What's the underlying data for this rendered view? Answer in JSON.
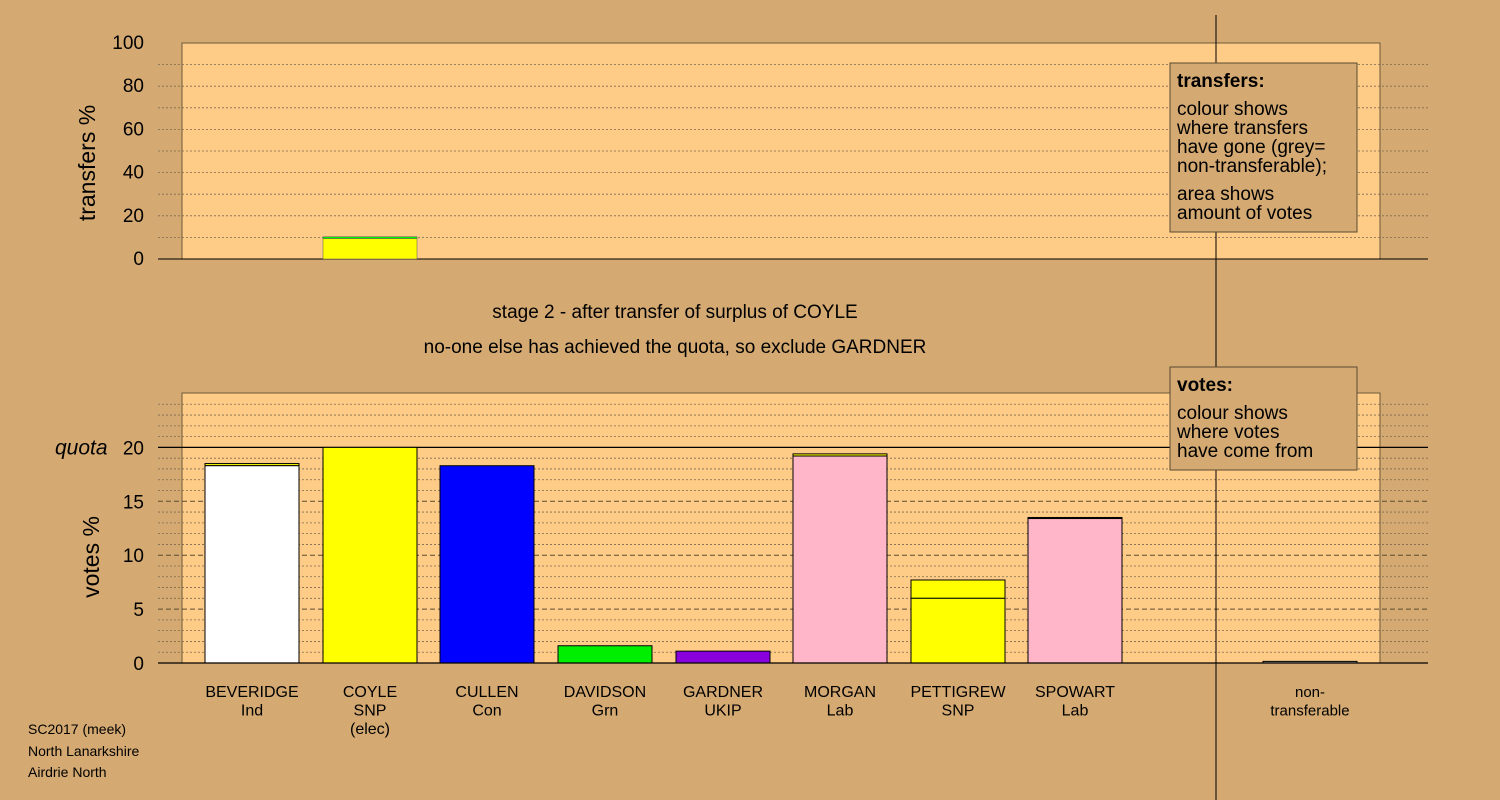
{
  "chart_data": [
    {
      "type": "bar",
      "ylabel": "transfers %",
      "ylim": [
        0,
        100
      ],
      "yticks": [
        0,
        20,
        40,
        60,
        80,
        100
      ],
      "categories": [
        "BEVERIDGE",
        "COYLE",
        "CULLEN",
        "DAVIDSON",
        "GARDNER",
        "MORGAN",
        "PETTIGREW",
        "SPOWART",
        "non-transferable"
      ],
      "series": [
        {
          "color": "#ffff00",
          "values": [
            0,
            9.5,
            0,
            0,
            0,
            0,
            0,
            0,
            0
          ]
        },
        {
          "color": "#00ee00",
          "values": [
            0,
            0.8,
            0,
            0,
            0,
            0,
            0,
            0,
            0
          ]
        }
      ],
      "legend": {
        "title": "transfers:",
        "lines1": [
          "colour shows",
          "where transfers",
          "have gone (grey=",
          "non-transferable);"
        ],
        "lines2": [
          "area shows",
          "amount of votes"
        ]
      }
    },
    {
      "type": "bar",
      "ylabel": "votes %",
      "ylim": [
        0,
        24
      ],
      "yticks": [
        0,
        5,
        10,
        15,
        20
      ],
      "quota": {
        "label": "quota",
        "value": 20
      },
      "categories": [
        "BEVERIDGE",
        "COYLE",
        "CULLEN",
        "DAVIDSON",
        "GARDNER",
        "MORGAN",
        "PETTIGREW",
        "SPOWART",
        "non-transferable"
      ],
      "category_labels": [
        [
          "BEVERIDGE",
          "Ind"
        ],
        [
          "COYLE",
          "SNP",
          "(elec)"
        ],
        [
          "CULLEN",
          "Con"
        ],
        [
          "DAVIDSON",
          "Grn"
        ],
        [
          "GARDNER",
          "UKIP"
        ],
        [
          "MORGAN",
          "Lab"
        ],
        [
          "PETTIGREW",
          "SNP"
        ],
        [
          "SPOWART",
          "Lab"
        ],
        [
          "non-",
          "transferable"
        ]
      ],
      "bars": [
        {
          "color": "#ffffff",
          "first": 18.3,
          "total": 18.5
        },
        {
          "color": "#ffff00",
          "first": 20.0,
          "total": 20.0
        },
        {
          "color": "#0000ff",
          "first": 18.3,
          "total": 18.3
        },
        {
          "color": "#00ee00",
          "first": 1.6,
          "total": 1.6
        },
        {
          "color": "#8800dd",
          "first": 1.1,
          "total": 1.1
        },
        {
          "color": "#ffb6c8",
          "first": 19.2,
          "total": 19.4
        },
        {
          "color": "#ffff00",
          "first": 6.0,
          "total": 7.7,
          "base_color": "#ffff00"
        },
        {
          "color": "#ffb6c8",
          "first": 13.4,
          "total": 13.5
        },
        {
          "color": "#b0b0b0",
          "first": 0.15,
          "total": 0.15
        }
      ],
      "legend": {
        "title": "votes:",
        "lines1": [
          "colour shows",
          "where votes",
          "have come from"
        ]
      }
    }
  ],
  "headings": [
    "stage 2 - after transfer of surplus of COYLE",
    "no-one else has achieved the quota, so exclude GARDNER"
  ],
  "footer": [
    "SC2017 (meek)",
    "North Lanarkshire",
    "Airdrie North"
  ]
}
